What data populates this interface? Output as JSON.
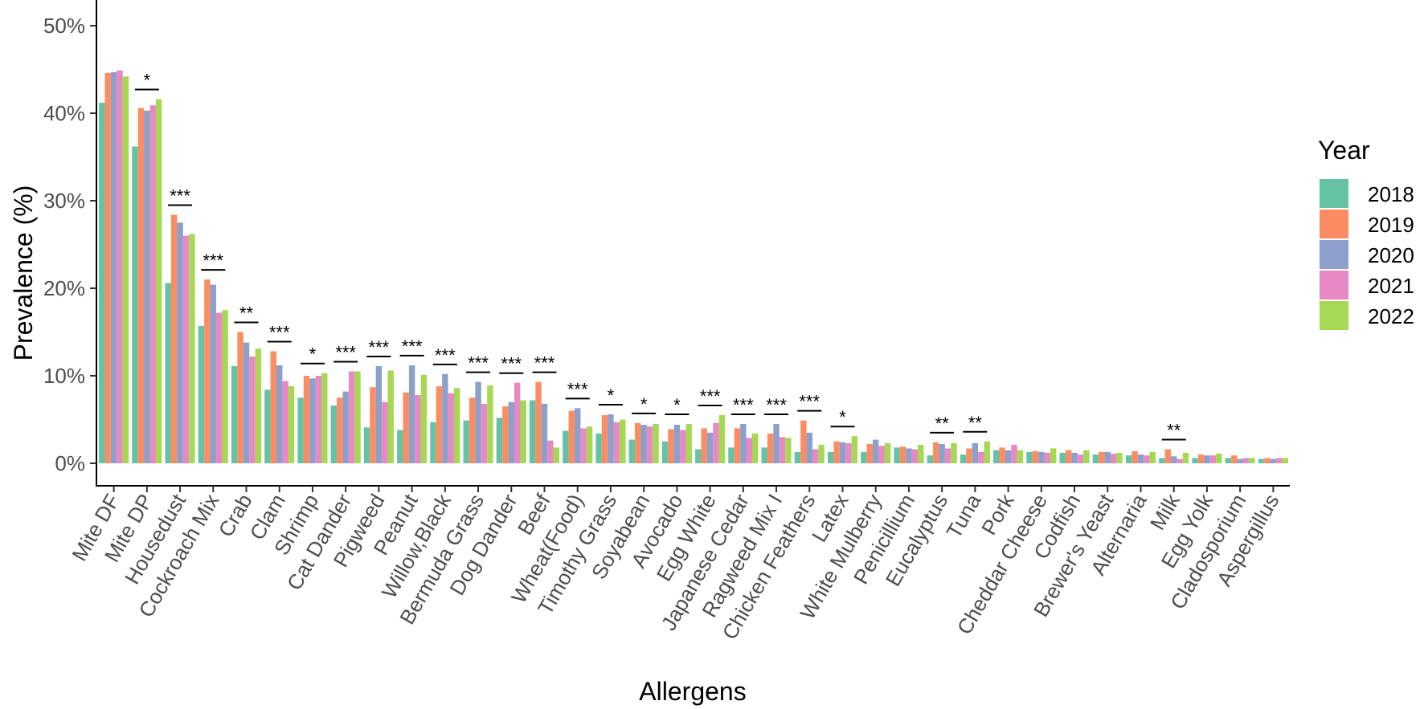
{
  "chart_data": {
    "type": "bar",
    "title": "",
    "xlabel": "Allergens",
    "ylabel": "Prevalence (%)",
    "ylim": [
      0,
      50
    ],
    "yticks": [
      0,
      10,
      20,
      30,
      40,
      50
    ],
    "ytick_labels": [
      "0%",
      "10%",
      "20%",
      "30%",
      "40%",
      "50%"
    ],
    "grid": false,
    "legend_title": "Year",
    "legend_position": "right",
    "categories": [
      "Mite DF",
      "Mite DP",
      "Housedust",
      "Cockroach Mix",
      "Crab",
      "Clam",
      "Shrimp",
      "Cat Dander",
      "Pigweed",
      "Peanut",
      "Willow,Black",
      "Bermuda Grass",
      "Dog Dander",
      "Beef",
      "Wheat(Food)",
      "Timothy Grass",
      "Soyabean",
      "Avocado",
      "Egg White",
      "Japanese Cedar",
      "Ragweed Mix I",
      "Chicken Feathers",
      "Latex",
      "White Mulberry",
      "Penicillium",
      "Eucalyptus",
      "Tuna",
      "Pork",
      "Cheddar Cheese",
      "Codfish",
      "Brewer's Yeast",
      "Alternaria",
      "Milk",
      "Egg Yolk",
      "Cladosporium",
      "Aspergillus"
    ],
    "series": [
      {
        "name": "2018",
        "color": "#66c2a5",
        "values": [
          41.2,
          36.2,
          20.6,
          15.7,
          11.1,
          8.4,
          7.5,
          6.6,
          4.1,
          3.8,
          4.7,
          4.9,
          5.2,
          7.2,
          3.7,
          3.4,
          2.7,
          2.5,
          1.6,
          1.8,
          1.8,
          1.3,
          1.3,
          1.3,
          1.8,
          0.9,
          1.0,
          1.5,
          1.3,
          1.2,
          1.0,
          0.9,
          0.6,
          0.6,
          0.6,
          0.5
        ]
      },
      {
        "name": "2019",
        "color": "#fc8d62",
        "values": [
          44.6,
          40.6,
          28.4,
          21.0,
          15.0,
          12.8,
          10.0,
          7.5,
          8.7,
          8.1,
          8.8,
          7.5,
          6.5,
          9.3,
          6.0,
          5.5,
          4.6,
          3.9,
          4.0,
          4.0,
          3.4,
          4.9,
          2.5,
          2.2,
          1.9,
          2.4,
          1.7,
          1.8,
          1.4,
          1.5,
          1.3,
          1.4,
          1.6,
          1.0,
          0.9,
          0.6
        ]
      },
      {
        "name": "2020",
        "color": "#8da0cb",
        "values": [
          44.7,
          40.3,
          27.5,
          20.4,
          13.8,
          11.2,
          9.7,
          8.2,
          11.1,
          11.2,
          10.2,
          9.3,
          7.0,
          6.8,
          6.3,
          5.6,
          4.4,
          4.4,
          3.5,
          4.5,
          4.5,
          3.5,
          2.4,
          2.7,
          1.7,
          2.2,
          2.3,
          1.5,
          1.3,
          1.2,
          1.3,
          1.0,
          0.8,
          0.9,
          0.5,
          0.5
        ]
      },
      {
        "name": "2021",
        "color": "#e78ac3",
        "values": [
          44.9,
          40.9,
          26.0,
          17.2,
          12.2,
          9.4,
          10.0,
          10.5,
          7.0,
          7.8,
          8.0,
          6.8,
          9.2,
          2.6,
          4.0,
          4.7,
          4.2,
          3.8,
          4.6,
          2.9,
          3.0,
          1.6,
          2.3,
          2.0,
          1.6,
          1.7,
          1.3,
          2.1,
          1.2,
          1.0,
          1.1,
          0.9,
          0.5,
          0.9,
          0.6,
          0.6
        ]
      },
      {
        "name": "2022",
        "color": "#a6d854",
        "values": [
          44.2,
          41.6,
          26.2,
          17.5,
          13.1,
          8.8,
          10.3,
          10.5,
          10.6,
          10.1,
          8.6,
          8.9,
          7.2,
          1.8,
          4.2,
          5.0,
          4.5,
          4.5,
          5.5,
          3.4,
          2.9,
          2.1,
          3.1,
          2.3,
          2.1,
          2.3,
          2.5,
          1.5,
          1.7,
          1.5,
          1.2,
          1.3,
          1.2,
          1.1,
          0.6,
          0.6
        ]
      }
    ],
    "significance": [
      "",
      "*",
      "***",
      "***",
      "**",
      "***",
      "*",
      "***",
      "***",
      "***",
      "***",
      "***",
      "***",
      "***",
      "***",
      "*",
      "*",
      "*",
      "***",
      "***",
      "***",
      "***",
      "*",
      "",
      "",
      "**",
      "**",
      "",
      "",
      "",
      "",
      "",
      "**",
      "",
      "",
      ""
    ]
  }
}
